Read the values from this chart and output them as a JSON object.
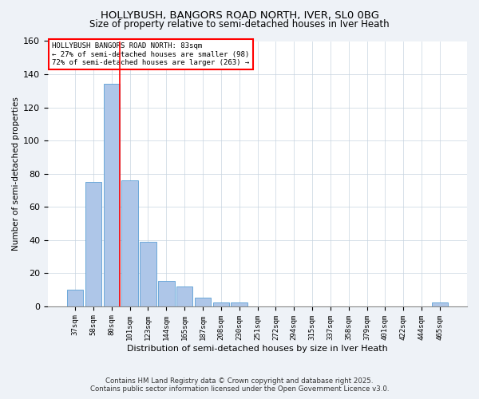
{
  "title1": "HOLLYBUSH, BANGORS ROAD NORTH, IVER, SL0 0BG",
  "title2": "Size of property relative to semi-detached houses in Iver Heath",
  "xlabel": "Distribution of semi-detached houses by size in Iver Heath",
  "ylabel": "Number of semi-detached properties",
  "categories": [
    "37sqm",
    "58sqm",
    "80sqm",
    "101sqm",
    "123sqm",
    "144sqm",
    "165sqm",
    "187sqm",
    "208sqm",
    "230sqm",
    "251sqm",
    "272sqm",
    "294sqm",
    "315sqm",
    "337sqm",
    "358sqm",
    "379sqm",
    "401sqm",
    "422sqm",
    "444sqm",
    "465sqm"
  ],
  "values": [
    10,
    75,
    134,
    76,
    39,
    15,
    12,
    5,
    2,
    2,
    0,
    0,
    0,
    0,
    0,
    0,
    0,
    0,
    0,
    0,
    2
  ],
  "bar_color": "#aec6e8",
  "bar_edge_color": "#5a9fd4",
  "red_line_x": 2,
  "annotation_text": "HOLLYBUSH BANGORS ROAD NORTH: 83sqm\n← 27% of semi-detached houses are smaller (98)\n72% of semi-detached houses are larger (263) →",
  "ylim": [
    0,
    160
  ],
  "yticks": [
    0,
    20,
    40,
    60,
    80,
    100,
    120,
    140,
    160
  ],
  "footer1": "Contains HM Land Registry data © Crown copyright and database right 2025.",
  "footer2": "Contains public sector information licensed under the Open Government Licence v3.0.",
  "bg_color": "#eef2f7",
  "plot_bg_color": "#ffffff",
  "grid_color": "#c8d4e0"
}
